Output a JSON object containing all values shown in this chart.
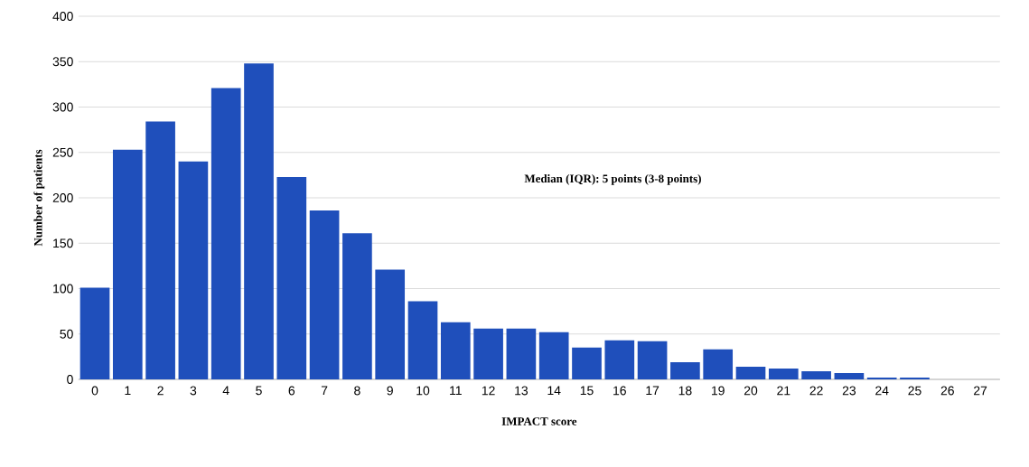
{
  "chart_data": {
    "type": "bar",
    "xlabel": "IMPACT score",
    "ylabel": "Number of patients",
    "annotations": [
      "Median (IQR): 5 points (3-8 points)"
    ],
    "categories": [
      "0",
      "1",
      "2",
      "3",
      "4",
      "5",
      "6",
      "7",
      "8",
      "9",
      "10",
      "11",
      "12",
      "13",
      "14",
      "15",
      "16",
      "17",
      "18",
      "19",
      "20",
      "21",
      "22",
      "23",
      "24",
      "25",
      "26",
      "27"
    ],
    "values": [
      101,
      253,
      284,
      240,
      321,
      348,
      223,
      186,
      161,
      121,
      86,
      63,
      56,
      56,
      52,
      35,
      43,
      42,
      19,
      33,
      14,
      12,
      9,
      7,
      2,
      2,
      0,
      0
    ],
    "color": "#1f4fbb",
    "ylim": [
      0,
      400
    ],
    "yticks": [
      0,
      50,
      100,
      150,
      200,
      250,
      300,
      350,
      400
    ],
    "grid": "y"
  }
}
